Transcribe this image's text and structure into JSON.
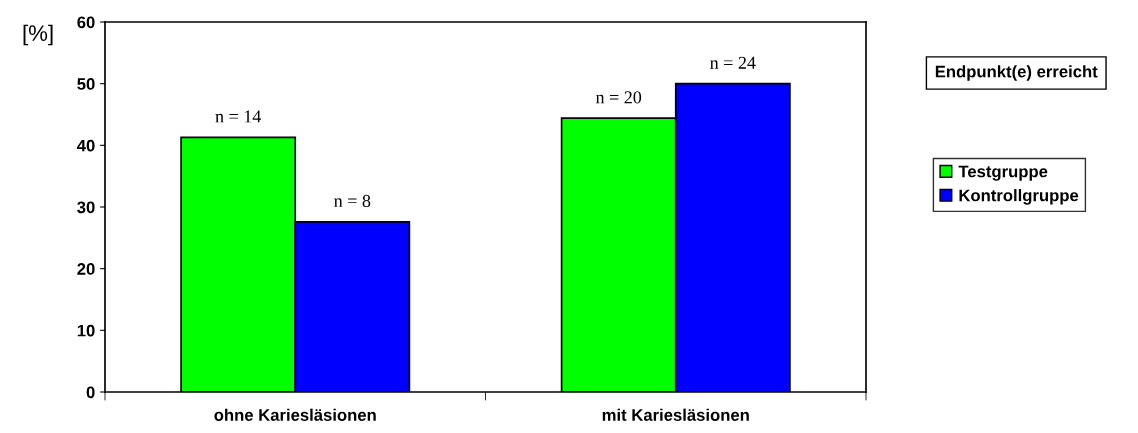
{
  "chart_data": {
    "type": "bar",
    "ylabel": "[%]",
    "legend_title": "Endpunkt(e) erreicht",
    "categories": [
      "ohne Kariesläsionen",
      "mit Kariesläsionen"
    ],
    "series": [
      {
        "name": "Testgruppe",
        "color": "#00ff00",
        "values": [
          41.3,
          44.4
        ]
      },
      {
        "name": "Kontrollgruppe",
        "color": "#0000ff",
        "values": [
          27.6,
          50
        ]
      }
    ],
    "annotations": [
      "n = 14",
      "n = 20",
      "n = 8",
      "n = 24"
    ],
    "ylim": [
      0,
      60
    ],
    "yticks": [
      0,
      10,
      20,
      30,
      40,
      50,
      60
    ],
    "grid": false,
    "legend": "right"
  }
}
